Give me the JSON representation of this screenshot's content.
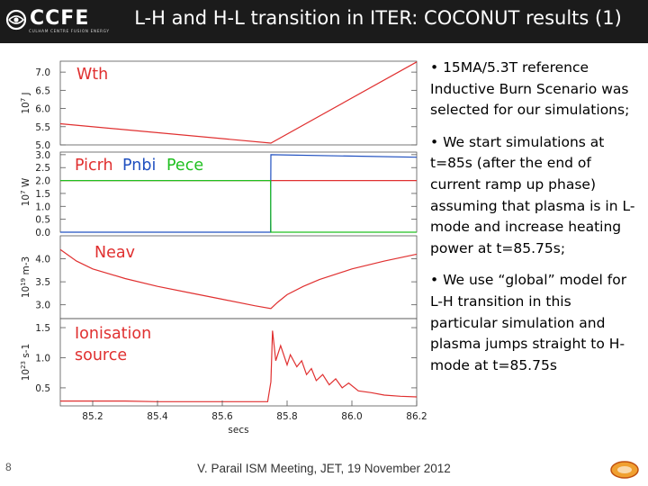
{
  "header": {
    "logo_name": "CCFE",
    "logo_subtitle": "CULHAM CENTRE FUSION ENERGY",
    "title": "L-H and H-L transition in ITER: COCONUT results (1)"
  },
  "bullets": [
    "• 15MA/5.3T reference Inductive Burn Scenario was selected for our simulations;",
    "• We start simulations at t=85s (after the end of current ramp up phase) assuming that plasma is in L-mode and increase heating power at t=85.75s;",
    "• We use “global” model for L-H transition in this particular simulation and plasma jumps straight to H-mode at t=85.75s"
  ],
  "footer": {
    "page_number": "8",
    "text": "V. Parail  ISM Meeting, JET, 19 November 2012"
  },
  "colors": {
    "header_bg": "#1b1b1b",
    "red": "#e03030",
    "blue": "#2050c0",
    "green": "#20c020"
  },
  "chart_data": {
    "type": "line",
    "xlabel": "secs",
    "xlim": [
      85.1,
      86.2
    ],
    "x_ticks": [
      "85.2",
      "85.4",
      "85.6",
      "85.8",
      "86.0",
      "86.2"
    ],
    "panels": [
      {
        "ylabel_power": "10",
        "ylabel_exp": "7",
        "ylabel_unit": "J",
        "ylim": [
          5.0,
          7.3
        ],
        "y_ticks": [
          {
            "v": 7.0,
            "label": "7.0"
          },
          {
            "v": 6.5,
            "label": "6.5"
          },
          {
            "v": 6.0,
            "label": "6.0"
          },
          {
            "v": 5.5,
            "label": "5.5"
          },
          {
            "v": 5.0,
            "label": "5.0"
          }
        ],
        "series": [
          {
            "name": "Wth",
            "color": "#e03030",
            "x": [
              85.1,
              85.75,
              86.2
            ],
            "y": [
              5.58,
              5.05,
              7.28
            ]
          }
        ]
      },
      {
        "ylabel_power": "10",
        "ylabel_exp": "7",
        "ylabel_unit": "W",
        "ylim": [
          0.0,
          3.1
        ],
        "y_ticks": [
          {
            "v": 3.0,
            "label": "3.0"
          },
          {
            "v": 2.5,
            "label": "2.5"
          },
          {
            "v": 2.0,
            "label": "2.0"
          },
          {
            "v": 1.5,
            "label": "1.5"
          },
          {
            "v": 1.0,
            "label": "1.0"
          },
          {
            "v": 0.5,
            "label": "0.5"
          },
          {
            "v": 0.0,
            "label": "0.0"
          }
        ],
        "series": [
          {
            "name": "Picrh",
            "color": "#e03030",
            "x": [
              85.1,
              86.2
            ],
            "y": [
              2.0,
              2.0
            ]
          },
          {
            "name": "Pnbi",
            "color": "#2050c0",
            "x": [
              85.1,
              85.749,
              85.75,
              86.2
            ],
            "y": [
              0.0,
              0.0,
              3.0,
              2.9
            ]
          },
          {
            "name": "Pece",
            "color": "#20c020",
            "x": [
              85.1,
              85.749,
              85.75,
              86.2
            ],
            "y": [
              2.0,
              2.0,
              0.0,
              0.0
            ]
          }
        ]
      },
      {
        "ylabel_power": "10",
        "ylabel_exp": "19",
        "ylabel_unit": "m-3",
        "ylim": [
          2.7,
          4.5
        ],
        "y_ticks": [
          {
            "v": 4.0,
            "label": "4.0"
          },
          {
            "v": 3.5,
            "label": "3.5"
          },
          {
            "v": 3.0,
            "label": "3.0"
          }
        ],
        "series": [
          {
            "name": "Neav",
            "color": "#e03030",
            "x": [
              85.1,
              85.15,
              85.2,
              85.3,
              85.4,
              85.5,
              85.6,
              85.7,
              85.75,
              85.77,
              85.8,
              85.85,
              85.9,
              86.0,
              86.1,
              86.2
            ],
            "y": [
              4.2,
              3.95,
              3.78,
              3.57,
              3.4,
              3.26,
              3.12,
              2.98,
              2.92,
              3.05,
              3.22,
              3.4,
              3.55,
              3.78,
              3.95,
              4.1
            ]
          }
        ]
      },
      {
        "ylabel_power": "10",
        "ylabel_exp": "23",
        "ylabel_unit": "s-1",
        "ylim": [
          0.2,
          1.65
        ],
        "y_ticks": [
          {
            "v": 1.5,
            "label": "1.5"
          },
          {
            "v": 1.0,
            "label": "1.0"
          },
          {
            "v": 0.5,
            "label": "0.5"
          }
        ],
        "series": [
          {
            "name": "Ionisation source",
            "color": "#e03030",
            "x": [
              85.1,
              85.2,
              85.3,
              85.4,
              85.5,
              85.6,
              85.7,
              85.74,
              85.75,
              85.755,
              85.765,
              85.78,
              85.8,
              85.81,
              85.83,
              85.845,
              85.86,
              85.875,
              85.89,
              85.91,
              85.93,
              85.95,
              85.97,
              85.99,
              86.02,
              86.06,
              86.1,
              86.15,
              86.2
            ],
            "y": [
              0.28,
              0.28,
              0.28,
              0.27,
              0.27,
              0.27,
              0.27,
              0.27,
              0.6,
              1.45,
              0.95,
              1.2,
              0.88,
              1.05,
              0.85,
              0.95,
              0.72,
              0.82,
              0.62,
              0.72,
              0.55,
              0.65,
              0.5,
              0.58,
              0.45,
              0.42,
              0.38,
              0.36,
              0.35
            ]
          }
        ]
      }
    ]
  }
}
